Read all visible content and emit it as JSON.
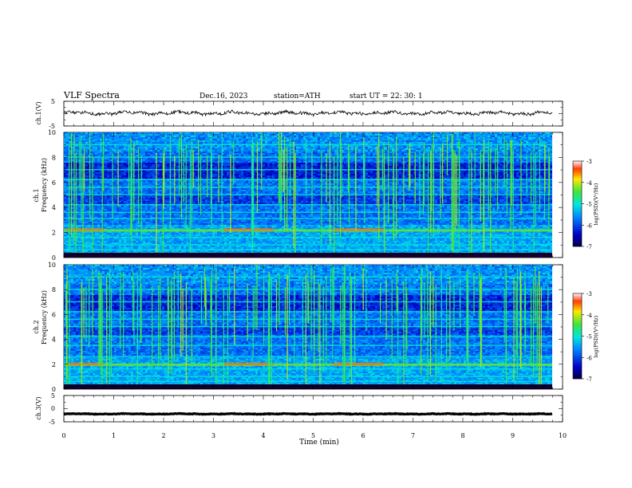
{
  "header": {
    "title": "VLF  Spectra",
    "date": "Dec.16, 2023",
    "station": "station=ATH",
    "start_ut": "start  UT  =    22: 30: 1"
  },
  "chart_data": [
    {
      "type": "line",
      "panel": "ch1-waveform",
      "ylabel": "ch.1(V)",
      "ylim": [
        -5,
        5
      ],
      "yticks": [
        "5",
        "-5"
      ],
      "x_range_min": [
        0,
        9.8
      ],
      "color": "#000000",
      "description_values": {
        "baseline_v": 0.2,
        "noise_amplitude_v": 1.2
      }
    },
    {
      "type": "heatmap",
      "panel": "ch1-spectrogram",
      "ylabel_line1": "ch.1",
      "ylabel_line2": "Frequency (kHz)",
      "ylim": [
        0,
        10
      ],
      "yticks": [
        "0",
        "2",
        "4",
        "6",
        "8",
        "10"
      ],
      "xlim": [
        0,
        10
      ],
      "data_extent_x_min": 9.8,
      "colorbar": {
        "label": "log(PSD)(V²/Hz)",
        "range": [
          -7,
          -3
        ],
        "ticks": [
          "-3",
          "-4",
          "-5",
          "-6",
          "-7"
        ]
      },
      "bands_khz": [
        0.6,
        1.0,
        1.6,
        2.2,
        3.1,
        3.6,
        4.2,
        5.0,
        5.6,
        6.2,
        7.0,
        8.0,
        9.0
      ]
    },
    {
      "type": "heatmap",
      "panel": "ch2-spectrogram",
      "ylabel_line1": "ch.2",
      "ylabel_line2": "Frequency (kHz)",
      "ylim": [
        0,
        10
      ],
      "yticks": [
        "0",
        "2",
        "4",
        "6",
        "8",
        "10"
      ],
      "xlim": [
        0,
        10
      ],
      "data_extent_x_min": 9.8,
      "colorbar": {
        "label": "log(PSD)(V²/Hz)",
        "range": [
          -7,
          -3
        ],
        "ticks": [
          "-3",
          "-4",
          "-5",
          "-6",
          "-7"
        ]
      },
      "bands_khz": [
        0.6,
        1.0,
        1.6,
        2.0,
        2.6,
        3.5,
        4.2,
        5.0,
        5.6,
        6.2,
        7.0,
        8.0,
        9.0
      ]
    },
    {
      "type": "line",
      "panel": "ch3-waveform",
      "ylabel": "ch.3(V)",
      "ylim": [
        -5,
        5
      ],
      "yticks": [
        "5",
        "0",
        "-5"
      ],
      "xlim": [
        0,
        10
      ],
      "xticks": [
        "0",
        "1",
        "2",
        "3",
        "4",
        "5",
        "6",
        "7",
        "8",
        "9",
        "10"
      ],
      "xlabel": "Time  (min)",
      "color": "#000000",
      "description_values": {
        "baseline_v": -2,
        "noise_amplitude_v": 0.2
      }
    }
  ]
}
